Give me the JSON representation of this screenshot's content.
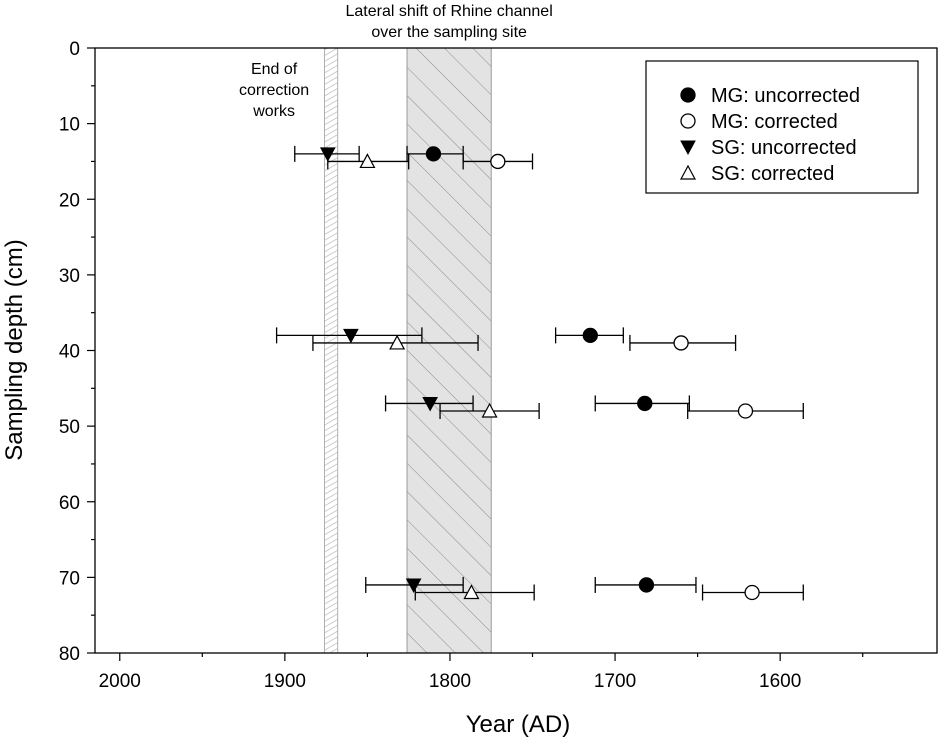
{
  "chart_data": {
    "type": "scatter",
    "xlabel": "Year (AD)",
    "ylabel": "Sampling depth (cm)",
    "xlim": [
      2015,
      1505
    ],
    "ylim": [
      0,
      80
    ],
    "x_reversed": true,
    "y_reversed": true,
    "x_ticks": [
      2000,
      1900,
      1800,
      1700,
      1600
    ],
    "x_minor_ticks": [
      1950,
      1850,
      1750,
      1650,
      1550
    ],
    "y_ticks": [
      0,
      10,
      20,
      30,
      40,
      50,
      60,
      70,
      80
    ],
    "y_minor_ticks": [
      5,
      15,
      25,
      35,
      45,
      55,
      65,
      75
    ],
    "grid": false,
    "legend_position": "top-right",
    "shaded_regions": [
      {
        "label": "End of\ncorrection\nworks",
        "x_from": 1876,
        "x_to": 1868,
        "style": "light hatch"
      },
      {
        "label": "Lateral shift of Rhine channel\nover the sampling site",
        "x_from": 1826,
        "x_to": 1775,
        "style": "gray hatch"
      }
    ],
    "series": [
      {
        "name": "MG: uncorrected",
        "marker": "filled-circle",
        "points": [
          {
            "x": 1810,
            "y": 14,
            "xerr_low": 1792,
            "xerr_high": 1826
          },
          {
            "x": 1715,
            "y": 38,
            "xerr_low": 1695,
            "xerr_high": 1736
          },
          {
            "x": 1682,
            "y": 47,
            "xerr_low": 1655,
            "xerr_high": 1712
          },
          {
            "x": 1681,
            "y": 71,
            "xerr_low": 1651,
            "xerr_high": 1712
          }
        ]
      },
      {
        "name": "MG: corrected",
        "marker": "open-circle",
        "points": [
          {
            "x": 1771,
            "y": 15,
            "xerr_low": 1750,
            "xerr_high": 1792
          },
          {
            "x": 1660,
            "y": 39,
            "xerr_low": 1627,
            "xerr_high": 1691
          },
          {
            "x": 1621,
            "y": 48,
            "xerr_low": 1586,
            "xerr_high": 1656
          },
          {
            "x": 1617,
            "y": 72,
            "xerr_low": 1586,
            "xerr_high": 1647
          }
        ]
      },
      {
        "name": "SG: uncorrected",
        "marker": "filled-triangle-down",
        "points": [
          {
            "x": 1874,
            "y": 14,
            "xerr_low": 1855,
            "xerr_high": 1894
          },
          {
            "x": 1860,
            "y": 38,
            "xerr_low": 1817,
            "xerr_high": 1905
          },
          {
            "x": 1812,
            "y": 47,
            "xerr_low": 1786,
            "xerr_high": 1839
          },
          {
            "x": 1822,
            "y": 71,
            "xerr_low": 1792,
            "xerr_high": 1851
          }
        ]
      },
      {
        "name": "SG: corrected",
        "marker": "open-triangle-up",
        "points": [
          {
            "x": 1850,
            "y": 15,
            "xerr_low": 1825,
            "xerr_high": 1874
          },
          {
            "x": 1832,
            "y": 39,
            "xerr_low": 1783,
            "xerr_high": 1883
          },
          {
            "x": 1776,
            "y": 48,
            "xerr_low": 1746,
            "xerr_high": 1806
          },
          {
            "x": 1787,
            "y": 72,
            "xerr_low": 1749,
            "xerr_high": 1821
          }
        ]
      }
    ]
  }
}
